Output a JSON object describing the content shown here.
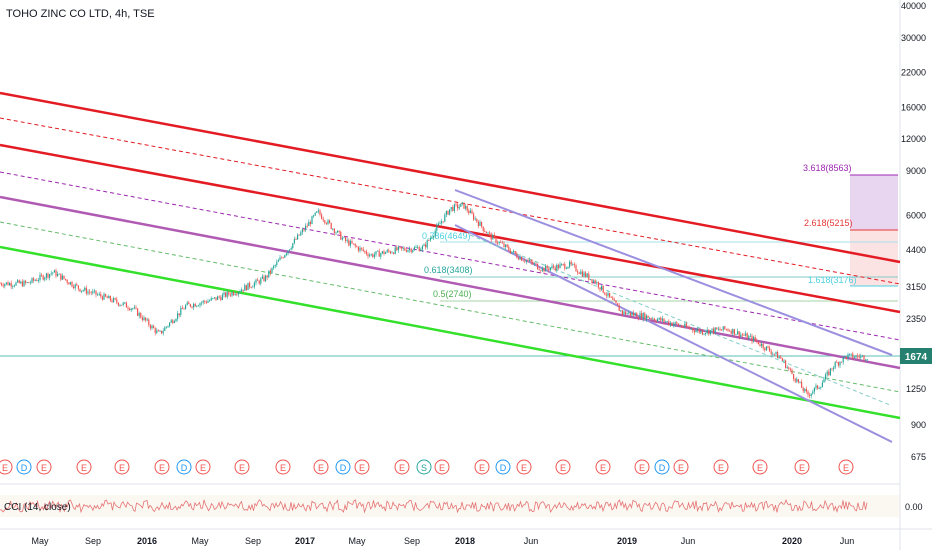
{
  "chart_title": "TOHO ZINC CO LTD, 4h, TSE",
  "chart_data": {
    "type": "line",
    "title": "TOHO ZINC CO LTD, 4h, TSE",
    "y_scale": "log",
    "ylim": [
      560,
      42000
    ],
    "y_ticks": [
      40000,
      30000,
      22000,
      16000,
      12000,
      9000,
      6000,
      4400,
      3150,
      2350,
      1700,
      1250,
      900,
      675
    ],
    "x_ticks": [
      "May",
      "Sep",
      "2016",
      "May",
      "Sep",
      "2017",
      "May",
      "Sep",
      "2018",
      "Jun",
      "2019",
      "Jun",
      "2020",
      "Jun"
    ],
    "last_price": "1674",
    "series": [
      {
        "x": [
          "2015-04",
          "2015-06",
          "2015-08",
          "2015-10",
          "2015-12",
          "2016-02",
          "2016-04",
          "2016-06",
          "2016-08",
          "2016-10",
          "2016-12",
          "2017-02",
          "2017-04",
          "2017-06",
          "2017-08",
          "2017-10",
          "2017-12",
          "2018-01",
          "2018-03",
          "2018-05",
          "2018-07",
          "2018-09",
          "2018-11",
          "2019-01",
          "2019-03",
          "2019-05",
          "2019-07",
          "2019-09",
          "2019-11",
          "2020-01",
          "2020-03",
          "2020-04",
          "2020-05",
          "2020-06",
          "2020-07"
        ],
        "values": [
          3250,
          3600,
          3100,
          2850,
          2600,
          2050,
          2650,
          2800,
          3050,
          3400,
          4600,
          6200,
          4800,
          4200,
          4400,
          4500,
          6400,
          6600,
          5000,
          4200,
          3700,
          3850,
          3300,
          2500,
          2400,
          2250,
          2100,
          2150,
          1950,
          1650,
          1180,
          1300,
          1550,
          1680,
          1674
        ]
      }
    ],
    "fib_levels": [
      {
        "label": "3.618(8563)",
        "value": 8563,
        "color": "#9c27b0"
      },
      {
        "label": "2.618(5215)",
        "value": 5215,
        "color": "#e53935"
      },
      {
        "label": "1.618(3176)",
        "value": 3176,
        "color": "#4dd0e1"
      },
      {
        "label": "0.786(4649)",
        "value": 4649,
        "color": "#4dd0e1"
      },
      {
        "label": "0.618(3408)",
        "value": 3408,
        "color": "#26a69a"
      },
      {
        "label": "0.5(2740)",
        "value": 2740,
        "color": "#4caf50"
      }
    ],
    "event_markers": [
      "E",
      "D",
      "E",
      "E",
      "E",
      "E",
      "D",
      "E",
      "E",
      "E",
      "E",
      "D",
      "E",
      "E",
      "S",
      "E",
      "E",
      "D",
      "E",
      "E",
      "E",
      "E",
      "D",
      "E",
      "E",
      "E",
      "E",
      "E"
    ],
    "indicator": {
      "label": "CCI (14, close)",
      "value": "0.00"
    }
  },
  "colors": {
    "red": "#e31b23",
    "green": "#33e02a",
    "purple": "#b05ab3",
    "lavender": "#9b8fe0",
    "candle_up": "#26a69a",
    "candle_down": "#ef5350",
    "price_label_bg": "#26806f"
  }
}
